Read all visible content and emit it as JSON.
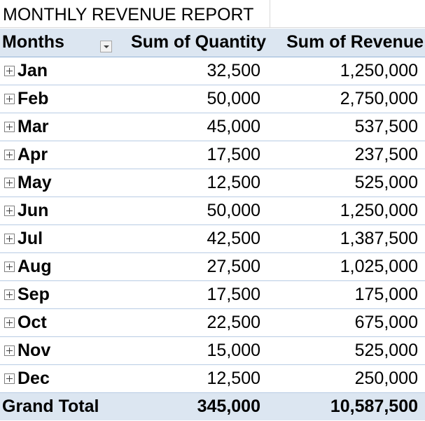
{
  "title": "MONTHLY REVENUE REPORT",
  "pivot": {
    "headers": {
      "row_label": "Months",
      "quantity": "Sum of Quantity",
      "revenue": "Sum of Revenue"
    },
    "rows": [
      {
        "month": "Jan",
        "quantity": "32,500",
        "revenue": "1,250,000"
      },
      {
        "month": "Feb",
        "quantity": "50,000",
        "revenue": "2,750,000"
      },
      {
        "month": "Mar",
        "quantity": "45,000",
        "revenue": "537,500"
      },
      {
        "month": "Apr",
        "quantity": "17,500",
        "revenue": "237,500"
      },
      {
        "month": "May",
        "quantity": "12,500",
        "revenue": "525,000"
      },
      {
        "month": "Jun",
        "quantity": "50,000",
        "revenue": "1,250,000"
      },
      {
        "month": "Jul",
        "quantity": "42,500",
        "revenue": "1,387,500"
      },
      {
        "month": "Aug",
        "quantity": "27,500",
        "revenue": "1,025,000"
      },
      {
        "month": "Sep",
        "quantity": "17,500",
        "revenue": "175,000"
      },
      {
        "month": "Oct",
        "quantity": "22,500",
        "revenue": "675,000"
      },
      {
        "month": "Nov",
        "quantity": "15,000",
        "revenue": "525,000"
      },
      {
        "month": "Dec",
        "quantity": "12,500",
        "revenue": "250,000"
      }
    ],
    "total": {
      "label": "Grand Total",
      "quantity": "345,000",
      "revenue": "10,587,500"
    }
  },
  "icons": {
    "expand": "plus-box-icon",
    "filter": "dropdown-arrow-icon"
  },
  "colors": {
    "header_fill": "#dce6f1",
    "header_border": "#95b3d7",
    "row_border": "#b8cce4"
  }
}
